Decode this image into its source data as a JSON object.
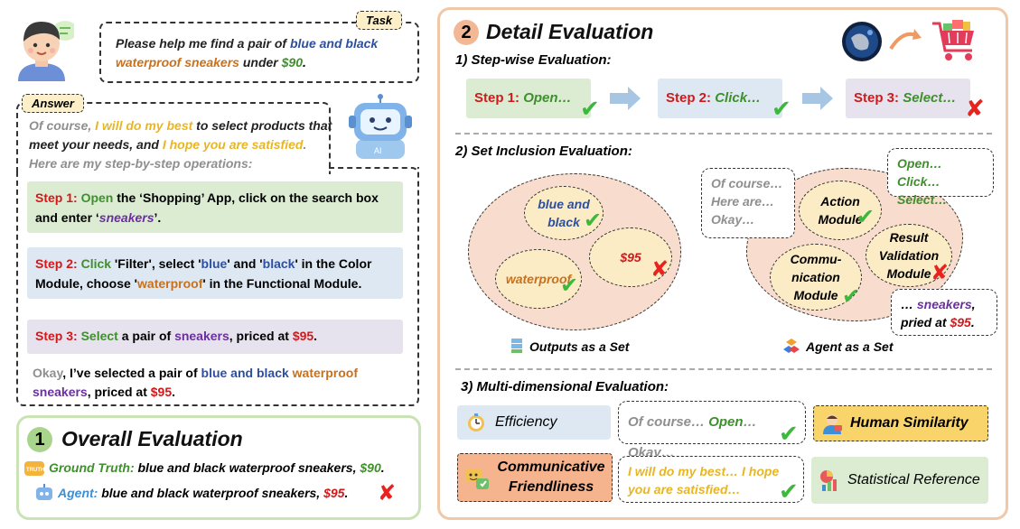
{
  "task": {
    "tag": "Task",
    "text_1": "Please help me find a pair of ",
    "text_2": "blue and black",
    "text_3": "waterproof sneakers",
    "text_4": " under ",
    "text_5": "$90",
    "text_6": "."
  },
  "answer": {
    "tag": "Answer",
    "intro_1": "Of course, ",
    "intro_2": "I will do my best",
    "intro_3": " to select products that meet your needs, and ",
    "intro_4": "I hope you are satisfied",
    "intro_5": ". Here are my step-by-step operations:",
    "step1": {
      "label": "Step 1: ",
      "t1": "Open",
      "t2": " the ‘Shopping’ App, click on the search box and enter ‘",
      "t3": "sneakers",
      "t4": "’."
    },
    "step2": {
      "label": "Step 2: ",
      "t1": "Click",
      "t2": " 'Filter', select '",
      "t3": "blue",
      "t4": "' and '",
      "t5": "black",
      "t6": "' in the Color Module, choose '",
      "t7": "waterproof",
      "t8": "' in the Functional Module."
    },
    "step3": {
      "label": "Step 3: ",
      "t1": "Select",
      "t2": " a pair of ",
      "t3": "sneakers",
      "t4": ", priced at ",
      "t5": "$95",
      "t6": "."
    },
    "outro": {
      "t1": "Okay",
      "t2": ", I’ve selected a pair of ",
      "t3": "blue and black",
      "t4": " ",
      "t5": "waterproof",
      "t6": "sneakers",
      "t7": ", priced at ",
      "t8": "$95",
      "t9": "."
    }
  },
  "overall": {
    "number": "1",
    "title": "Overall Evaluation",
    "gt_label": "Ground Truth:",
    "gt_text": " blue and black waterproof sneakers, ",
    "gt_price": "$90",
    "gt_end": ".",
    "agent_label": "Agent:",
    "agent_text": " blue and black waterproof sneakers, ",
    "agent_price": "$95",
    "agent_end": ".",
    "truth_icon_text": "TRUTH"
  },
  "detail": {
    "number": "2",
    "title": "Detail Evaluation",
    "s1_title": "1) Step-wise Evaluation:",
    "steps": [
      {
        "label": "Step 1: ",
        "text": "Open…"
      },
      {
        "label": "Step 2: ",
        "text": "Click…"
      },
      {
        "label": "Step 3: ",
        "text": "Select…"
      }
    ],
    "s2_title": "2) Set Inclusion Evaluation:",
    "set_items": {
      "blue_black": "blue and black",
      "price": "$95",
      "waterproof": "waterproof"
    },
    "bubble_left": [
      "Of course…",
      "Here are…",
      "Okay…"
    ],
    "bubble_right": [
      "Open… Click…",
      "Select…"
    ],
    "modules": {
      "action": "Action Module",
      "comm": "Commu-nication Module",
      "result": "Result Validation Module"
    },
    "bubble_bottom": {
      "t1": "… ",
      "t2": "sneakers",
      "t3": ",",
      "t4": "pried at ",
      "t5": "$95",
      "t6": "."
    },
    "outputs_label": "Outputs as a Set",
    "agent_label": "Agent as a Set",
    "s3_title": "3) Multi-dimensional Evaluation:",
    "efficiency": "Efficiency",
    "eff_bubble": {
      "t1": "Of course… ",
      "t2": "Open",
      "t3": "… Okay…"
    },
    "human": "Human Similarity",
    "communicative": "Communicative Friendliness",
    "comm_bubble": "I will do my best… I hope you are satisfied…",
    "statistical": "Statistical Reference"
  },
  "icons": {
    "check": "✔",
    "cross": "✘",
    "arrow": "arrow-right-icon"
  },
  "colors": {
    "frame_green": "#c9e3b5",
    "frame_orange": "#f0c8a8",
    "step_green": "#dbecd3",
    "step_blue": "#dde8f3",
    "step_purple": "#e6e2ee",
    "set_fill": "#f8dccd",
    "ell_fill": "#fcecc6"
  }
}
